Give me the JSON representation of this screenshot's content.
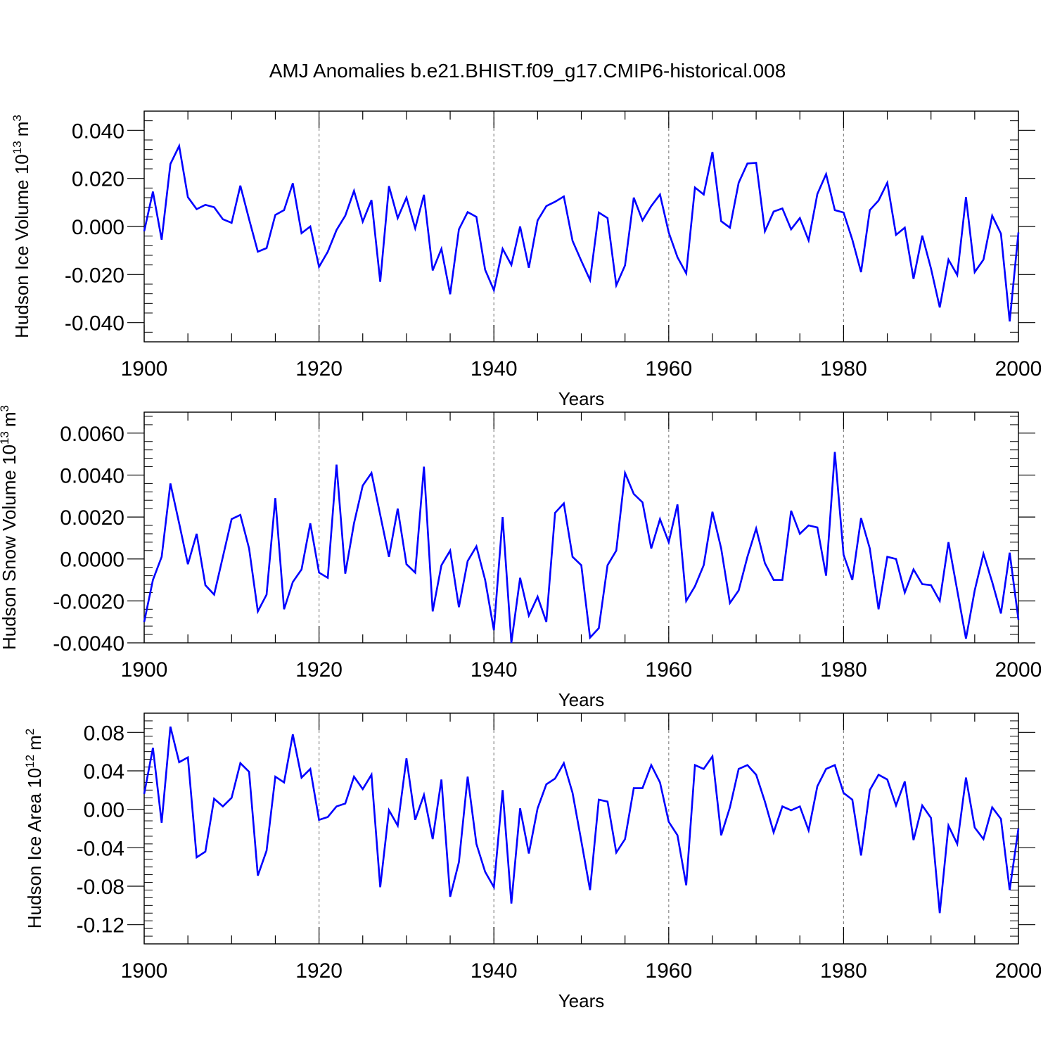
{
  "chart_data": {
    "title": "AMJ Anomalies b.e21.BHIST.f09_g17.CMIP6-historical.008",
    "line_color": "#0000ff",
    "grid_color": "#888888",
    "panels": [
      {
        "type": "line",
        "name": "ice-volume",
        "ylabel_main": "Hudson Ice Volume 10",
        "ylabel_exp": "13",
        "ylabel_unit": "m",
        "ylabel_unit_exp": "3",
        "xlabel": "Years",
        "xlim": [
          1900,
          2000
        ],
        "ylim": [
          -0.048,
          0.048
        ],
        "yticks": [
          -0.04,
          -0.02,
          0.0,
          0.02,
          0.04
        ],
        "ytick_labels": [
          "-0.040",
          "-0.020",
          "0.000",
          "0.020",
          "0.040"
        ],
        "xticks": [
          1900,
          1920,
          1940,
          1960,
          1980,
          2000
        ],
        "xtick_labels": [
          "1900",
          "1920",
          "1940",
          "1960",
          "1980",
          "2000"
        ],
        "x_start": 1900,
        "values": [
          -0.002,
          0.0145,
          -0.0055,
          0.026,
          0.0335,
          0.0122,
          0.0072,
          0.009,
          0.008,
          0.003,
          0.0015,
          0.017,
          0.003,
          -0.0105,
          -0.009,
          0.0048,
          0.0068,
          0.018,
          -0.0028,
          0.0,
          -0.0168,
          -0.0105,
          -0.0015,
          0.0045,
          0.0148,
          0.002,
          0.011,
          -0.023,
          0.0168,
          0.0035,
          0.012,
          -0.0008,
          0.0132,
          -0.0183,
          -0.0093,
          -0.0282,
          -0.0012,
          0.006,
          0.004,
          -0.018,
          -0.0265,
          -0.0093,
          -0.016,
          0.0,
          -0.0172,
          0.0025,
          0.0085,
          0.0103,
          0.0125,
          -0.006,
          -0.0143,
          -0.0223,
          0.0058,
          0.0035,
          -0.0245,
          -0.0162,
          0.012,
          0.0025,
          0.0085,
          0.0133,
          -0.0025,
          -0.0128,
          -0.0195,
          0.0162,
          0.0133,
          0.031,
          0.0022,
          -0.0005,
          0.0182,
          0.0262,
          0.0265,
          -0.002,
          0.0062,
          0.0075,
          -0.0012,
          0.0035,
          -0.0058,
          0.0135,
          0.0218,
          0.0068,
          0.0058,
          -0.0055,
          -0.019,
          0.0068,
          0.0108,
          0.0182,
          -0.0035,
          -0.0005,
          -0.0218,
          -0.0038,
          -0.0175,
          -0.0337,
          -0.0138,
          -0.0202,
          0.0122,
          -0.019,
          -0.0138,
          0.0045,
          -0.003,
          -0.0395,
          -0.0025
        ]
      },
      {
        "type": "line",
        "name": "snow-volume",
        "ylabel_main": "Hudson Snow Volume 10",
        "ylabel_exp": "13",
        "ylabel_unit": "m",
        "ylabel_unit_exp": "3",
        "xlabel": "Years",
        "xlim": [
          1900,
          2000
        ],
        "ylim": [
          -0.004,
          0.007
        ],
        "yticks": [
          -0.004,
          -0.002,
          0.0,
          0.002,
          0.004,
          0.006
        ],
        "ytick_labels": [
          "-0.0040",
          "-0.0020",
          "0.0000",
          "0.0020",
          "0.0040",
          "0.0060"
        ],
        "xticks": [
          1900,
          1920,
          1940,
          1960,
          1980,
          2000
        ],
        "xtick_labels": [
          "1900",
          "1920",
          "1940",
          "1960",
          "1980",
          "2000"
        ],
        "x_start": 1900,
        "values": [
          -0.003,
          -0.001,
          0.0001,
          0.0036,
          0.0017,
          -0.00025,
          0.0012,
          -0.00125,
          -0.0017,
          0.0001,
          0.0019,
          0.0021,
          0.0005,
          -0.0025,
          -0.0017,
          0.0029,
          -0.0024,
          -0.0011,
          -0.0005,
          0.0017,
          -0.00065,
          -0.0009,
          0.0045,
          -0.0007,
          0.0017,
          0.0035,
          0.0041,
          0.0021,
          0.0001,
          0.0024,
          -0.00025,
          -0.00065,
          0.0044,
          -0.0025,
          -0.0003,
          0.0004,
          -0.0023,
          -0.0001,
          0.0006,
          -0.001,
          -0.0034,
          0.002,
          -0.004,
          -0.0009,
          -0.0027,
          -0.0018,
          -0.003,
          0.0022,
          0.00265,
          0.0001,
          -0.0003,
          -0.00375,
          -0.0033,
          -0.0003,
          0.0004,
          0.0041,
          0.0031,
          0.0027,
          0.0005,
          0.0019,
          0.0008,
          0.0026,
          -0.002,
          -0.0013,
          -0.0003,
          0.00225,
          0.0005,
          -0.0021,
          -0.0015,
          0.0001,
          0.00145,
          -0.0002,
          -0.001,
          -0.001,
          0.0023,
          0.0012,
          0.0016,
          0.0015,
          -0.0008,
          0.0051,
          0.0002,
          -0.001,
          0.00195,
          0.0005,
          -0.0024,
          0.0001,
          0.0,
          -0.0016,
          -0.0005,
          -0.0012,
          -0.00125,
          -0.002,
          0.0008,
          -0.0015,
          -0.0038,
          -0.0015,
          0.00025,
          -0.0011,
          -0.0026,
          0.0003,
          -0.0029
        ]
      },
      {
        "type": "line",
        "name": "ice-area",
        "ylabel_main": "Hudson Ice Area 10",
        "ylabel_exp": "12",
        "ylabel_unit": "m",
        "ylabel_unit_exp": "2",
        "xlabel": "Years",
        "xlim": [
          1900,
          2000
        ],
        "ylim": [
          -0.14,
          0.1
        ],
        "yticks": [
          -0.12,
          -0.08,
          -0.04,
          0.0,
          0.04,
          0.08
        ],
        "ytick_labels": [
          "-0.12",
          "-0.08",
          "-0.04",
          "0.00",
          "0.04",
          "0.08"
        ],
        "xticks": [
          1900,
          1920,
          1940,
          1960,
          1980,
          2000
        ],
        "xtick_labels": [
          "1900",
          "1920",
          "1940",
          "1960",
          "1980",
          "2000"
        ],
        "x_start": 1900,
        "values": [
          0.016,
          0.064,
          -0.014,
          0.086,
          0.049,
          0.054,
          -0.05,
          -0.044,
          0.011,
          0.003,
          0.012,
          0.048,
          0.039,
          -0.069,
          -0.043,
          0.034,
          0.028,
          0.078,
          0.033,
          0.042,
          -0.011,
          -0.008,
          0.003,
          0.006,
          0.034,
          0.021,
          0.036,
          -0.081,
          -0.001,
          -0.017,
          0.053,
          -0.011,
          0.015,
          -0.031,
          0.031,
          -0.091,
          -0.055,
          0.034,
          -0.036,
          -0.065,
          -0.081,
          0.02,
          -0.098,
          0.001,
          -0.046,
          0.001,
          0.026,
          0.032,
          0.048,
          0.017,
          -0.033,
          -0.084,
          0.01,
          0.008,
          -0.045,
          -0.031,
          0.022,
          0.022,
          0.046,
          0.028,
          -0.013,
          -0.027,
          -0.079,
          0.046,
          0.042,
          0.055,
          -0.027,
          0.002,
          0.042,
          0.046,
          0.036,
          0.008,
          -0.024,
          0.003,
          -0.001,
          0.003,
          -0.022,
          0.024,
          0.042,
          0.046,
          0.017,
          0.01,
          -0.048,
          0.02,
          0.036,
          0.031,
          0.004,
          0.029,
          -0.032,
          0.004,
          -0.009,
          -0.108,
          -0.017,
          -0.036,
          0.033,
          -0.019,
          -0.031,
          0.002,
          -0.01,
          -0.084,
          -0.02
        ]
      }
    ]
  }
}
